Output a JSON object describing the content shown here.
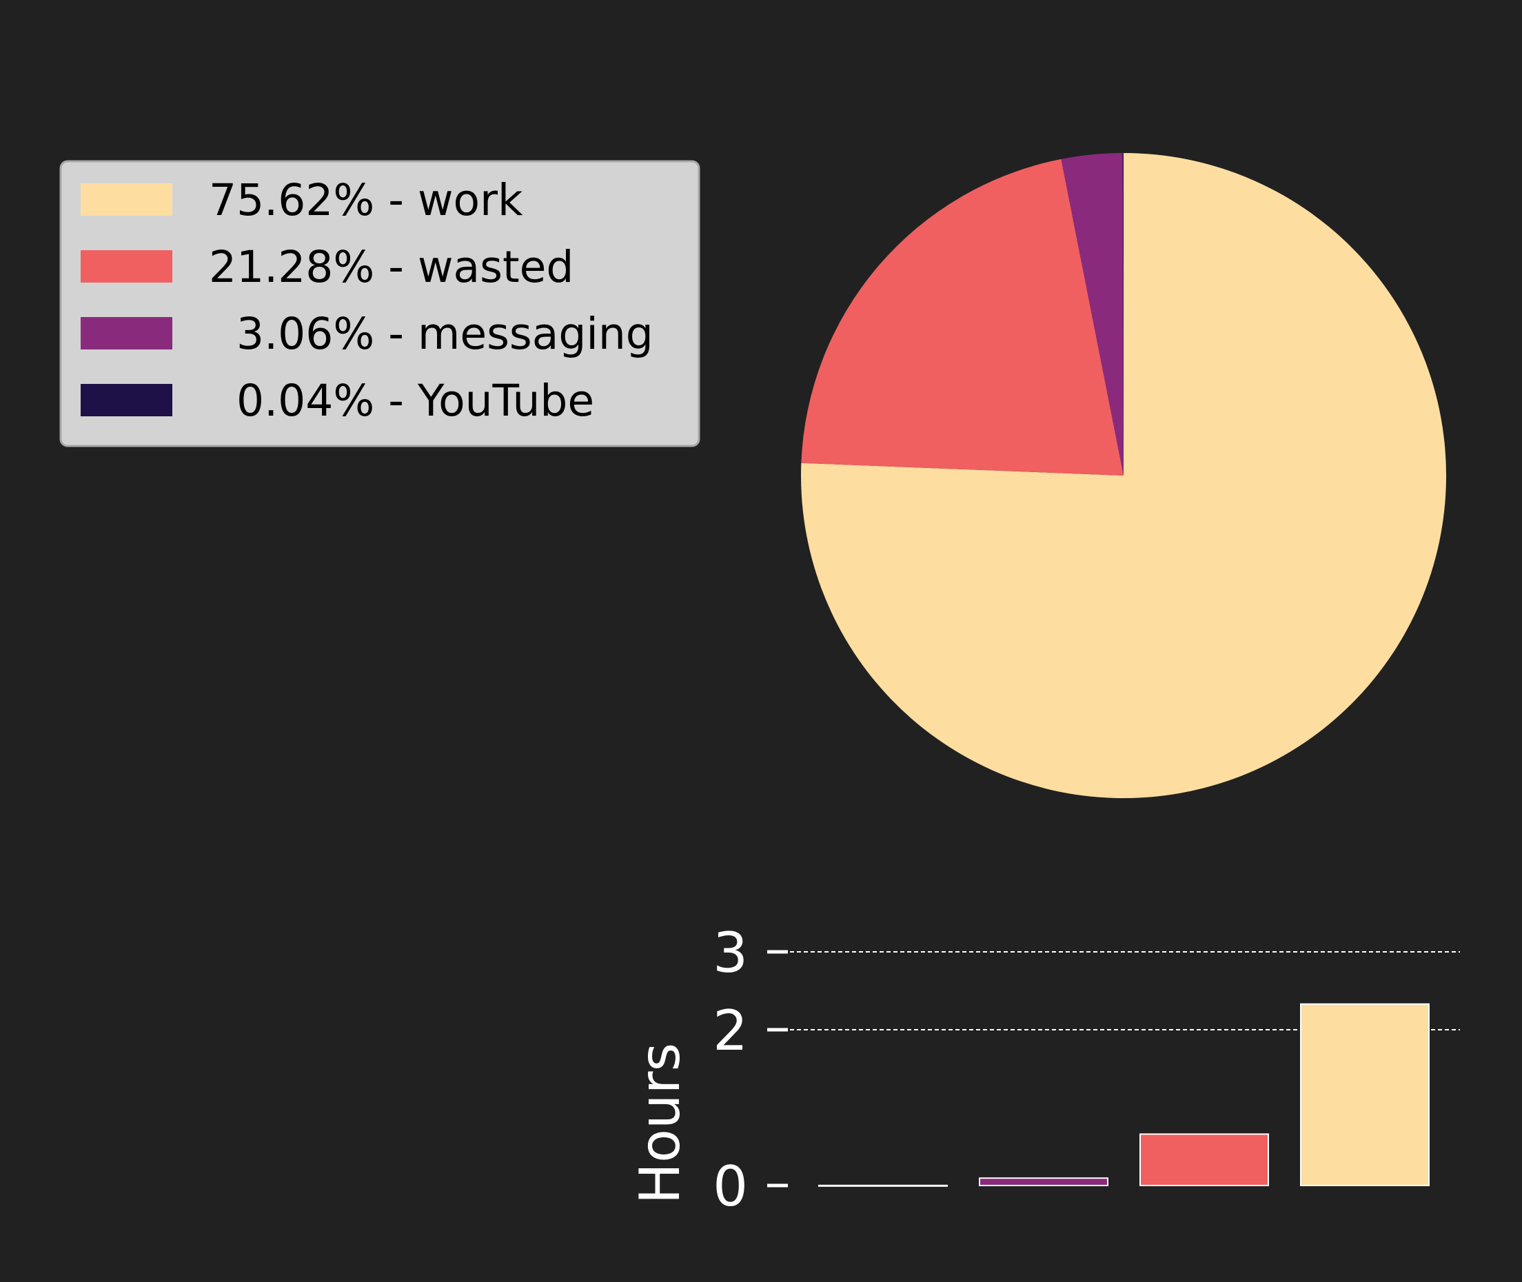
{
  "chart_data": [
    {
      "type": "pie",
      "slices": [
        {
          "name": "work",
          "value": 75.62,
          "color": "#fddea0"
        },
        {
          "name": "wasted",
          "value": 21.28,
          "color": "#f06060"
        },
        {
          "name": "messaging",
          "value": 3.06,
          "color": "#8a2a7d"
        },
        {
          "name": "YouTube",
          "value": 0.04,
          "color": "#1d1148"
        }
      ],
      "legend": {
        "placement": "top-left",
        "entries": [
          {
            "label": "75.62% - work",
            "color": "#fddea0"
          },
          {
            "label": "21.28% - wasted",
            "color": "#f06060"
          },
          {
            "label": "  3.06% - messaging",
            "color": "#8a2a7d"
          },
          {
            "label": "  0.04% - YouTube",
            "color": "#1d1148"
          }
        ]
      },
      "start_angle_deg": 90,
      "direction": "clockwise"
    },
    {
      "type": "bar",
      "categories": [
        "YouTube",
        "messaging",
        "wasted",
        "work"
      ],
      "values": [
        0.0013,
        0.095,
        0.66,
        2.33
      ],
      "colors": [
        "#1d1148",
        "#8a2a7d",
        "#f06060",
        "#fddea0"
      ],
      "ylabel": "Hours",
      "yticks": [
        0,
        2,
        3
      ],
      "ylim": [
        0,
        3
      ],
      "grid_y": [
        2,
        3
      ],
      "xlabel": ""
    }
  ]
}
